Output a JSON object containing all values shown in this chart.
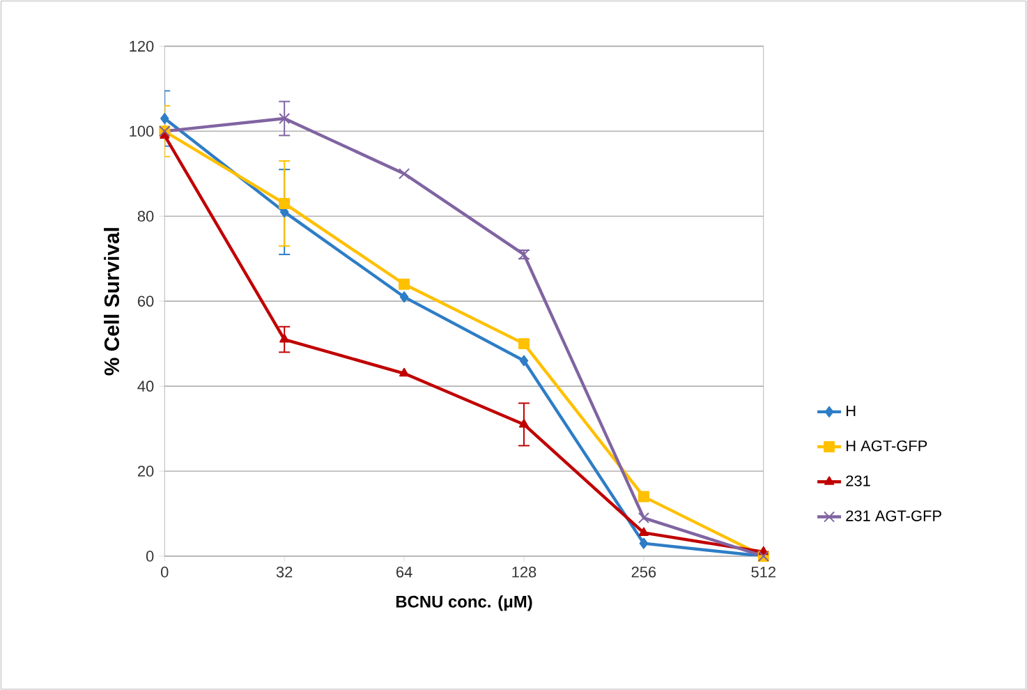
{
  "chart_data": {
    "type": "line",
    "xlabel": "BCNU conc. (μM)",
    "ylabel": "% Cell Survival",
    "categories": [
      "0",
      "32",
      "64",
      "128",
      "256",
      "512"
    ],
    "ylim": [
      0,
      120
    ],
    "yticks": [
      0,
      20,
      40,
      60,
      80,
      100,
      120
    ],
    "grid": "y",
    "legend": "right",
    "series": [
      {
        "name": "H",
        "color": "#2e7dc6",
        "marker": "diamond",
        "values": [
          103,
          81,
          61,
          46,
          3,
          0
        ],
        "errors": [
          6.5,
          10,
          null,
          null,
          null,
          null
        ]
      },
      {
        "name": "H AGT-GFP",
        "color": "#ffc000",
        "marker": "square",
        "values": [
          100,
          83,
          64,
          50,
          14,
          0
        ],
        "errors": [
          6,
          10,
          null,
          null,
          null,
          null
        ]
      },
      {
        "name": "231",
        "color": "#c00000",
        "marker": "triangle",
        "values": [
          99,
          51,
          43,
          31,
          5.5,
          1
        ],
        "errors": [
          null,
          3,
          null,
          5,
          null,
          null
        ]
      },
      {
        "name": "231 AGT-GFP",
        "color": "#8064a2",
        "marker": "cross",
        "values": [
          100,
          103,
          90,
          71,
          9,
          0
        ],
        "errors": [
          null,
          4,
          null,
          1,
          null,
          null
        ]
      }
    ]
  }
}
